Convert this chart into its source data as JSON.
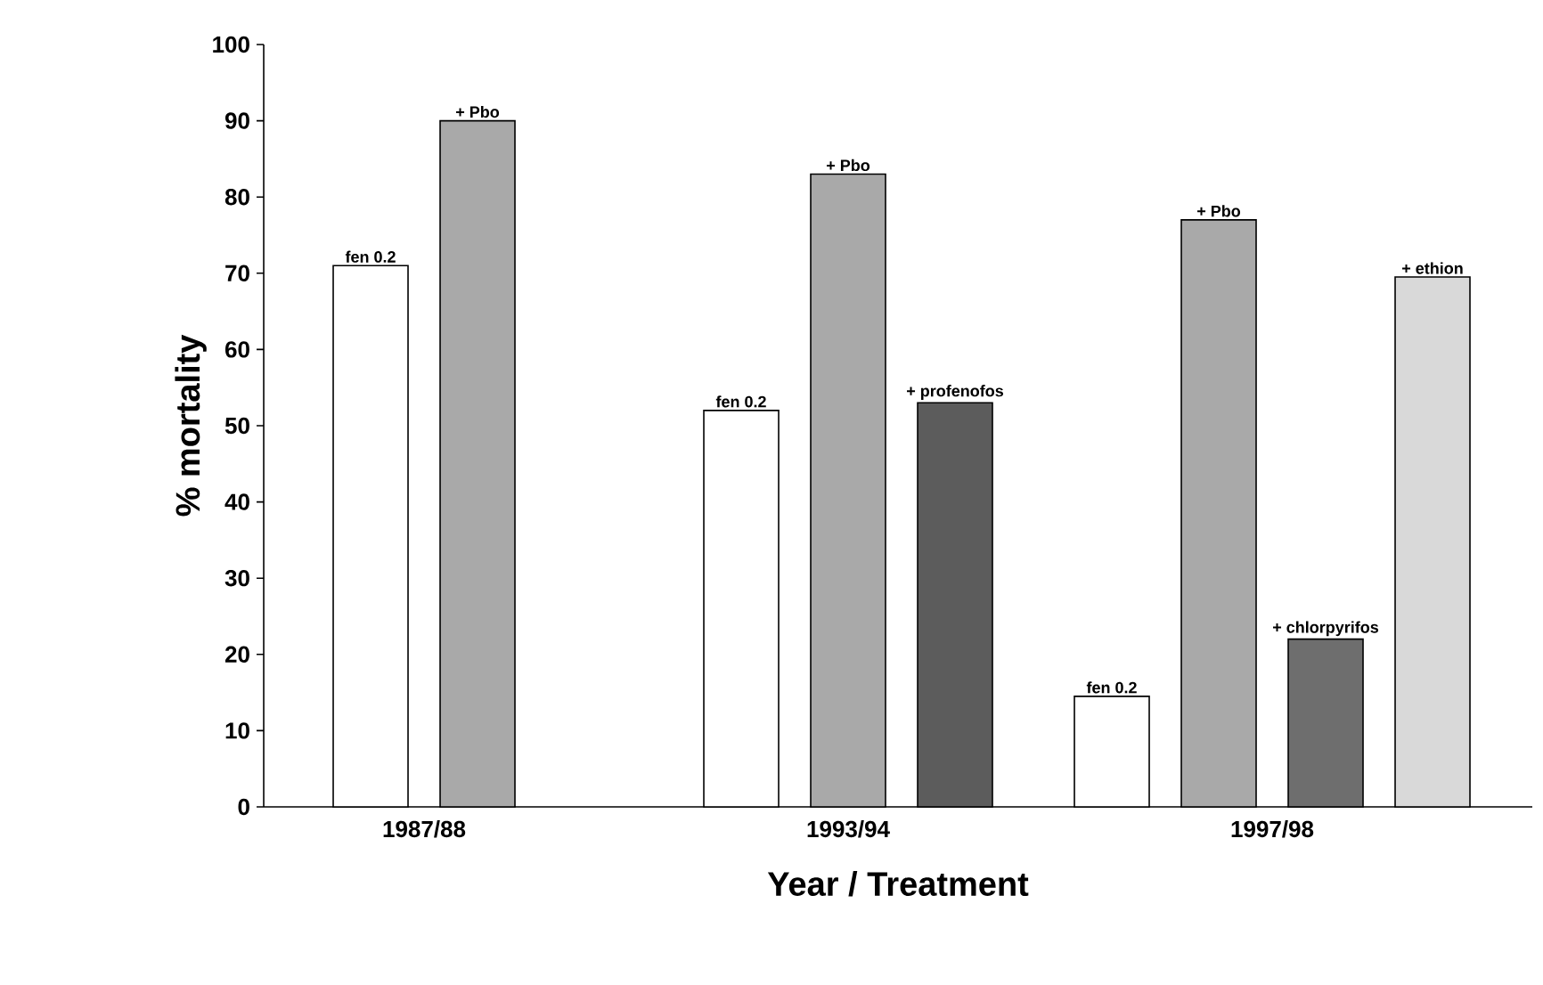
{
  "chart_data": {
    "type": "bar",
    "xlabel": "Year / Treatment",
    "ylabel": "% mortality",
    "categories": [
      "1987/88",
      "1993/94",
      "1997/98"
    ],
    "series": [
      {
        "name": "fen 0.2",
        "color": "#ffffff",
        "values": [
          71,
          52,
          14.5
        ]
      },
      {
        "name": "+ Pbo",
        "color": "#a9a9a9",
        "values": [
          90,
          83,
          77
        ]
      },
      {
        "name": "+ profenofos",
        "color": "#5c5c5c",
        "values": [
          null,
          53,
          null
        ]
      },
      {
        "name": "+ chlorpyrifos",
        "color": "#6e6e6e",
        "values": [
          null,
          null,
          22
        ]
      },
      {
        "name": "+ ethion",
        "color": "#d9d9d9",
        "values": [
          null,
          null,
          69.5
        ]
      }
    ],
    "ylim": [
      0,
      100
    ],
    "yticks": [
      0,
      10,
      20,
      30,
      40,
      50,
      60,
      70,
      80,
      90,
      100
    ],
    "grid": false
  }
}
